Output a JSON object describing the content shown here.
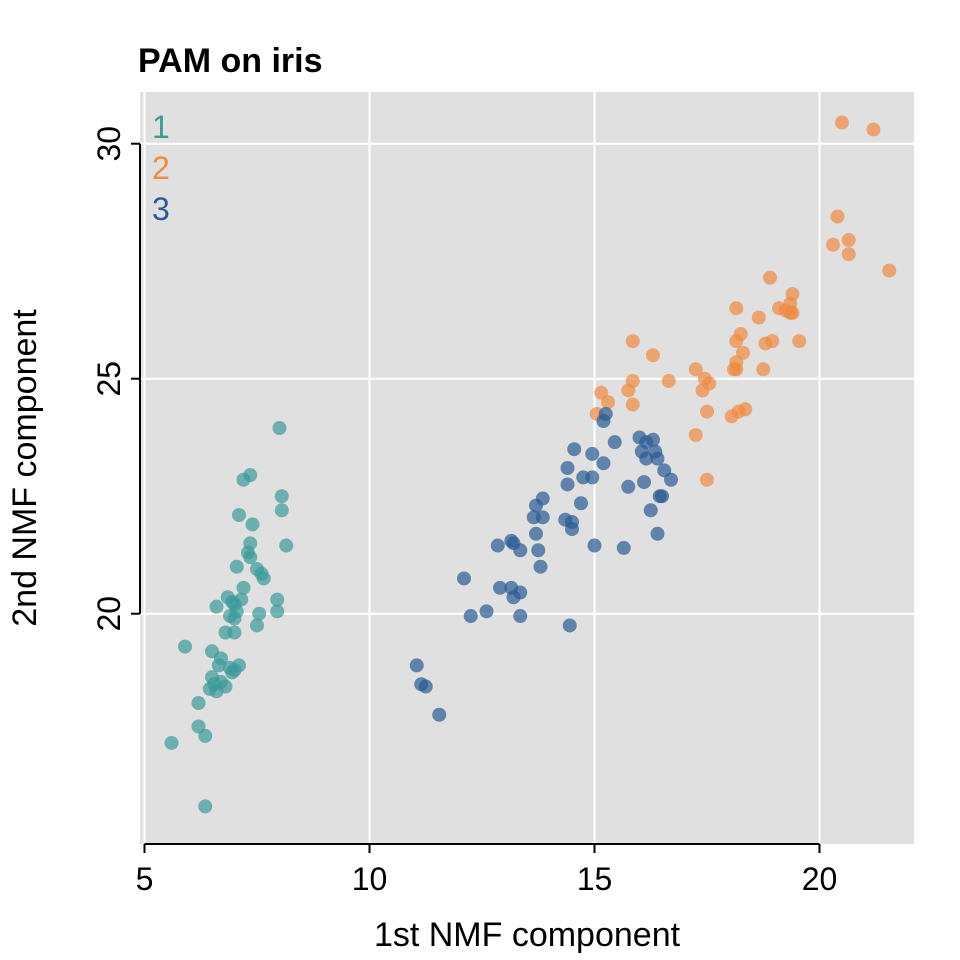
{
  "chart_data": {
    "type": "scatter",
    "title": "PAM on iris",
    "xlabel": "1st NMF component",
    "ylabel": "2nd NMF component",
    "xlim": [
      4.9,
      22.1
    ],
    "ylim": [
      15.1,
      31.1
    ],
    "xticks": [
      5,
      10,
      15,
      20
    ],
    "yticks": [
      20,
      25,
      30
    ],
    "xtick_labels": [
      "5",
      "10",
      "15",
      "20"
    ],
    "ytick_labels": [
      "20",
      "25",
      "30"
    ],
    "grid": true,
    "legend_position": "top-left",
    "series": [
      {
        "name": "1",
        "color": "#3a9a9a",
        "points": [
          [
            8.0,
            23.95
          ],
          [
            7.35,
            22.95
          ],
          [
            7.2,
            22.85
          ],
          [
            7.1,
            22.1
          ],
          [
            8.05,
            22.5
          ],
          [
            8.05,
            22.2
          ],
          [
            7.4,
            21.9
          ],
          [
            8.15,
            21.45
          ],
          [
            7.35,
            21.5
          ],
          [
            7.3,
            21.3
          ],
          [
            7.35,
            21.2
          ],
          [
            7.05,
            21.0
          ],
          [
            7.5,
            20.95
          ],
          [
            7.6,
            20.85
          ],
          [
            7.65,
            20.75
          ],
          [
            7.2,
            20.55
          ],
          [
            7.15,
            20.3
          ],
          [
            6.85,
            20.35
          ],
          [
            6.95,
            20.25
          ],
          [
            7.0,
            20.2
          ],
          [
            6.6,
            20.15
          ],
          [
            7.95,
            20.3
          ],
          [
            7.95,
            20.05
          ],
          [
            7.05,
            20.05
          ],
          [
            7.55,
            20.0
          ],
          [
            6.9,
            19.95
          ],
          [
            7.0,
            19.9
          ],
          [
            7.5,
            19.75
          ],
          [
            7.0,
            19.6
          ],
          [
            6.8,
            19.6
          ],
          [
            6.5,
            19.2
          ],
          [
            5.9,
            19.3
          ],
          [
            6.7,
            19.05
          ],
          [
            6.65,
            18.9
          ],
          [
            7.1,
            18.9
          ],
          [
            6.9,
            18.85
          ],
          [
            6.95,
            18.75
          ],
          [
            7.0,
            18.8
          ],
          [
            6.5,
            18.65
          ],
          [
            6.7,
            18.55
          ],
          [
            6.55,
            18.5
          ],
          [
            6.45,
            18.4
          ],
          [
            6.8,
            18.45
          ],
          [
            6.6,
            18.35
          ],
          [
            6.2,
            18.1
          ],
          [
            6.2,
            17.6
          ],
          [
            6.35,
            17.4
          ],
          [
            5.6,
            17.25
          ],
          [
            6.35,
            15.9
          ]
        ]
      },
      {
        "name": "2",
        "color": "#f08a3e",
        "points": [
          [
            20.5,
            30.45
          ],
          [
            21.2,
            30.3
          ],
          [
            20.4,
            28.45
          ],
          [
            20.3,
            27.85
          ],
          [
            20.65,
            27.95
          ],
          [
            20.65,
            27.65
          ],
          [
            21.55,
            27.3
          ],
          [
            18.9,
            27.15
          ],
          [
            19.4,
            26.8
          ],
          [
            19.35,
            26.6
          ],
          [
            19.1,
            26.5
          ],
          [
            19.25,
            26.45
          ],
          [
            19.4,
            26.4
          ],
          [
            19.35,
            26.4
          ],
          [
            18.15,
            26.5
          ],
          [
            18.65,
            26.3
          ],
          [
            18.25,
            25.95
          ],
          [
            18.15,
            25.8
          ],
          [
            18.8,
            25.75
          ],
          [
            18.95,
            25.8
          ],
          [
            19.55,
            25.8
          ],
          [
            18.3,
            25.55
          ],
          [
            18.15,
            25.35
          ],
          [
            18.1,
            25.2
          ],
          [
            18.15,
            25.2
          ],
          [
            18.75,
            25.2
          ],
          [
            17.25,
            25.2
          ],
          [
            15.85,
            25.8
          ],
          [
            16.3,
            25.5
          ],
          [
            16.65,
            24.95
          ],
          [
            15.85,
            24.95
          ],
          [
            17.45,
            25.0
          ],
          [
            17.55,
            24.9
          ],
          [
            17.4,
            24.75
          ],
          [
            15.75,
            24.75
          ],
          [
            15.15,
            24.7
          ],
          [
            15.85,
            24.45
          ],
          [
            15.3,
            24.5
          ],
          [
            15.05,
            24.25
          ],
          [
            17.5,
            24.3
          ],
          [
            18.35,
            24.35
          ],
          [
            18.2,
            24.3
          ],
          [
            18.05,
            24.2
          ],
          [
            17.25,
            23.8
          ],
          [
            17.5,
            22.85
          ]
        ]
      },
      {
        "name": "3",
        "color": "#2a5b94",
        "points": [
          [
            15.25,
            24.25
          ],
          [
            15.2,
            24.1
          ],
          [
            16.0,
            23.75
          ],
          [
            16.3,
            23.7
          ],
          [
            16.15,
            23.65
          ],
          [
            15.45,
            23.65
          ],
          [
            14.55,
            23.5
          ],
          [
            16.05,
            23.45
          ],
          [
            16.35,
            23.45
          ],
          [
            16.15,
            23.3
          ],
          [
            16.4,
            23.3
          ],
          [
            14.95,
            23.4
          ],
          [
            15.2,
            23.2
          ],
          [
            14.4,
            23.1
          ],
          [
            16.55,
            23.05
          ],
          [
            14.95,
            22.9
          ],
          [
            14.75,
            22.9
          ],
          [
            16.7,
            22.85
          ],
          [
            16.1,
            22.8
          ],
          [
            15.75,
            22.7
          ],
          [
            14.4,
            22.75
          ],
          [
            16.45,
            22.5
          ],
          [
            16.5,
            22.5
          ],
          [
            13.85,
            22.45
          ],
          [
            13.7,
            22.3
          ],
          [
            14.7,
            22.35
          ],
          [
            16.25,
            22.2
          ],
          [
            13.65,
            22.05
          ],
          [
            13.85,
            22.05
          ],
          [
            14.35,
            22.0
          ],
          [
            14.5,
            21.95
          ],
          [
            14.5,
            21.8
          ],
          [
            13.7,
            21.7
          ],
          [
            16.4,
            21.7
          ],
          [
            13.15,
            21.55
          ],
          [
            13.2,
            21.5
          ],
          [
            12.85,
            21.45
          ],
          [
            15.0,
            21.45
          ],
          [
            15.65,
            21.4
          ],
          [
            13.35,
            21.35
          ],
          [
            13.75,
            21.35
          ],
          [
            13.8,
            21.0
          ],
          [
            12.1,
            20.75
          ],
          [
            12.9,
            20.55
          ],
          [
            13.15,
            20.55
          ],
          [
            13.35,
            20.45
          ],
          [
            13.2,
            20.35
          ],
          [
            12.6,
            20.05
          ],
          [
            12.25,
            19.95
          ],
          [
            13.35,
            19.95
          ],
          [
            14.45,
            19.75
          ],
          [
            11.05,
            18.9
          ],
          [
            11.15,
            18.5
          ],
          [
            11.25,
            18.45
          ],
          [
            11.55,
            17.85
          ]
        ]
      }
    ]
  }
}
